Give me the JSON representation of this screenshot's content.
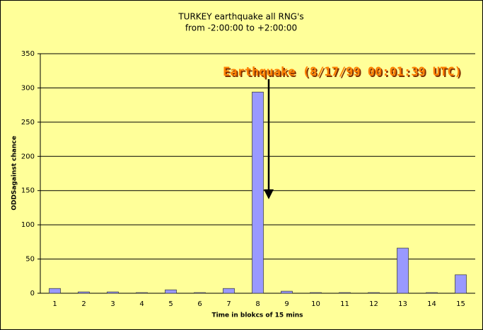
{
  "chart_data": {
    "type": "bar",
    "title": "TURKEY earthquake all RNG's",
    "subtitle": "from -2:00:00 to +2:00:00",
    "x_label": "Time in blokcs of 15 mins",
    "y_label": "ODDSagainst chance",
    "annotation": "Earthquake (8/17/99 00:01:39 UTC)",
    "categories": [
      "1",
      "2",
      "3",
      "4",
      "5",
      "6",
      "7",
      "8",
      "9",
      "10",
      "11",
      "12",
      "13",
      "14",
      "15"
    ],
    "values": [
      7,
      2,
      2,
      1,
      5,
      1,
      7,
      294,
      3,
      1,
      1,
      1,
      66,
      1,
      27
    ],
    "color": "#9999ff",
    "ylim": [
      0,
      350
    ],
    "yticks": [
      0,
      50,
      100,
      150,
      200,
      250,
      300,
      350
    ],
    "grid": true
  }
}
